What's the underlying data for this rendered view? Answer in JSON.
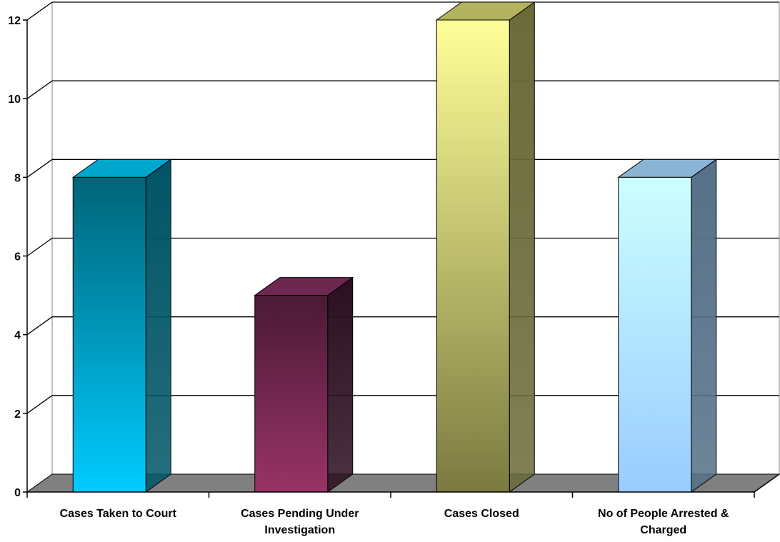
{
  "chart_data": {
    "type": "bar",
    "style": "3d-column",
    "categories": [
      "Cases Taken to Court",
      "Cases Pending Under Investigation",
      "Cases Closed",
      "No of People Arrested & Charged"
    ],
    "category_lines": [
      [
        "Cases Taken to Court"
      ],
      [
        "Cases Pending Under",
        "Investigation"
      ],
      [
        "Cases Closed"
      ],
      [
        "No of People Arrested &",
        "Charged"
      ]
    ],
    "values": [
      8,
      5,
      12,
      8
    ],
    "ylim": [
      0,
      12
    ],
    "yticks": [
      "0",
      "2",
      "4",
      "6",
      "8",
      "10",
      "12"
    ],
    "title": "",
    "xlabel": "",
    "ylabel": "",
    "grid": true,
    "legend": "none",
    "colors": [
      {
        "front_top": "#006478",
        "front_bottom": "#00ccff",
        "side": "#005566",
        "top": "#00a6cc"
      },
      {
        "front_top": "#4a1a36",
        "front_bottom": "#993366",
        "side": "#2b0f20",
        "top": "#6e2850"
      },
      {
        "front_top": "#ffff99",
        "front_bottom": "#7a7a40",
        "side": "#6a6a3a",
        "top": "#b3b360"
      },
      {
        "front_top": "#ccffff",
        "front_bottom": "#99ccff",
        "side": "#557088",
        "top": "#8ab4d4"
      }
    ],
    "floor_color": "#808080"
  }
}
